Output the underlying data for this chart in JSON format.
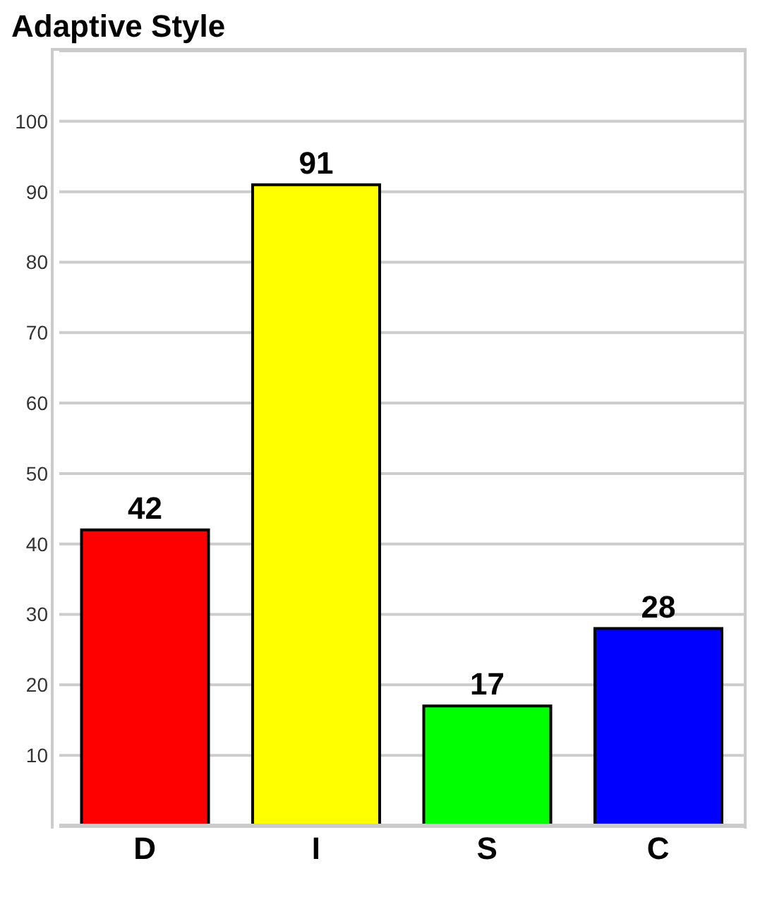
{
  "chart_data": {
    "type": "bar",
    "title": "Adaptive Style",
    "categories": [
      "D",
      "I",
      "S",
      "C"
    ],
    "values": [
      42,
      91,
      17,
      28
    ],
    "colors": [
      "#ff0000",
      "#ffff00",
      "#00ff00",
      "#0000ff"
    ],
    "ylim": [
      0,
      110
    ],
    "yticks": [
      10,
      20,
      30,
      40,
      50,
      60,
      70,
      80,
      90,
      100
    ],
    "grid": "y",
    "data_labels": true
  }
}
